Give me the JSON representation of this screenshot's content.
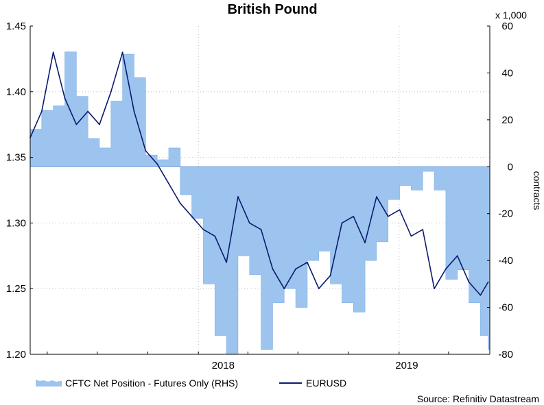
{
  "chart_data": {
    "type": "area+line",
    "title": "British Pound",
    "source": "Source: Refinitiv Datastream",
    "y_left": {
      "min": 1.2,
      "max": 1.45,
      "ticks": [
        "1.20",
        "1.25",
        "1.30",
        "1.35",
        "1.40",
        "1.45"
      ],
      "label": ""
    },
    "y_right": {
      "min": -80,
      "max": 60,
      "ticks": [
        "-80",
        "-60",
        "-40",
        "-20",
        "0",
        "20",
        "40",
        "60"
      ],
      "label": "contracts",
      "multiplier_label": "x 1,000"
    },
    "x_axis": {
      "start": "2017-03-01",
      "end": "2019-06-15",
      "labels": [
        {
          "text": "2018"
        },
        {
          "text": "2019"
        }
      ]
    },
    "grid": "dotted",
    "legend_placement": "bottom",
    "series": [
      {
        "name": "CFTC Net Position - Futures Only (RHS)",
        "axis": "right",
        "kind": "area",
        "color": "#9cc4ee",
        "x": [
          "2017-03-01",
          "2017-03-22",
          "2017-04-12",
          "2017-05-03",
          "2017-05-24",
          "2017-06-14",
          "2017-07-05",
          "2017-07-26",
          "2017-08-16",
          "2017-09-06",
          "2017-09-27",
          "2017-10-18",
          "2017-11-08",
          "2017-11-29",
          "2017-12-20",
          "2018-01-10",
          "2018-01-31",
          "2018-02-21",
          "2018-03-14",
          "2018-04-04",
          "2018-04-25",
          "2018-05-16",
          "2018-06-06",
          "2018-06-27",
          "2018-07-18",
          "2018-08-08",
          "2018-08-29",
          "2018-09-19",
          "2018-10-10",
          "2018-10-31",
          "2018-11-21",
          "2018-12-12",
          "2019-01-02",
          "2019-01-23",
          "2019-02-13",
          "2019-03-06",
          "2019-03-27",
          "2019-04-17",
          "2019-05-08",
          "2019-05-29",
          "2019-06-12"
        ],
        "values": [
          16,
          24,
          26,
          49,
          30,
          12,
          8,
          28,
          48,
          38,
          5,
          3,
          8,
          -12,
          -22,
          -50,
          -72,
          -80,
          -38,
          -46,
          -78,
          -58,
          -52,
          -60,
          -40,
          -36,
          -50,
          -58,
          -62,
          -40,
          -32,
          -14,
          -8,
          -10,
          -2,
          -10,
          -48,
          -44,
          -58,
          -72,
          -78
        ]
      },
      {
        "name": "EURUSD",
        "axis": "left",
        "kind": "line",
        "color": "#0c1a6e",
        "x": [
          "2017-03-01",
          "2017-03-22",
          "2017-04-12",
          "2017-05-03",
          "2017-05-24",
          "2017-06-14",
          "2017-07-05",
          "2017-07-26",
          "2017-08-16",
          "2017-09-06",
          "2017-09-27",
          "2017-10-18",
          "2017-11-08",
          "2017-11-29",
          "2017-12-20",
          "2018-01-10",
          "2018-01-31",
          "2018-02-21",
          "2018-03-14",
          "2018-04-04",
          "2018-04-25",
          "2018-05-16",
          "2018-06-06",
          "2018-06-27",
          "2018-07-18",
          "2018-08-08",
          "2018-08-29",
          "2018-09-19",
          "2018-10-10",
          "2018-10-31",
          "2018-11-21",
          "2018-12-12",
          "2019-01-02",
          "2019-01-23",
          "2019-02-13",
          "2019-03-06",
          "2019-03-27",
          "2019-04-17",
          "2019-05-08",
          "2019-05-29",
          "2019-06-12"
        ],
        "values": [
          1.365,
          1.385,
          1.43,
          1.395,
          1.375,
          1.385,
          1.375,
          1.4,
          1.43,
          1.385,
          1.355,
          1.345,
          1.33,
          1.315,
          1.305,
          1.295,
          1.29,
          1.27,
          1.32,
          1.3,
          1.295,
          1.265,
          1.25,
          1.265,
          1.27,
          1.25,
          1.26,
          1.3,
          1.305,
          1.285,
          1.32,
          1.305,
          1.31,
          1.29,
          1.295,
          1.25,
          1.265,
          1.275,
          1.255,
          1.245,
          1.255
        ]
      }
    ]
  }
}
